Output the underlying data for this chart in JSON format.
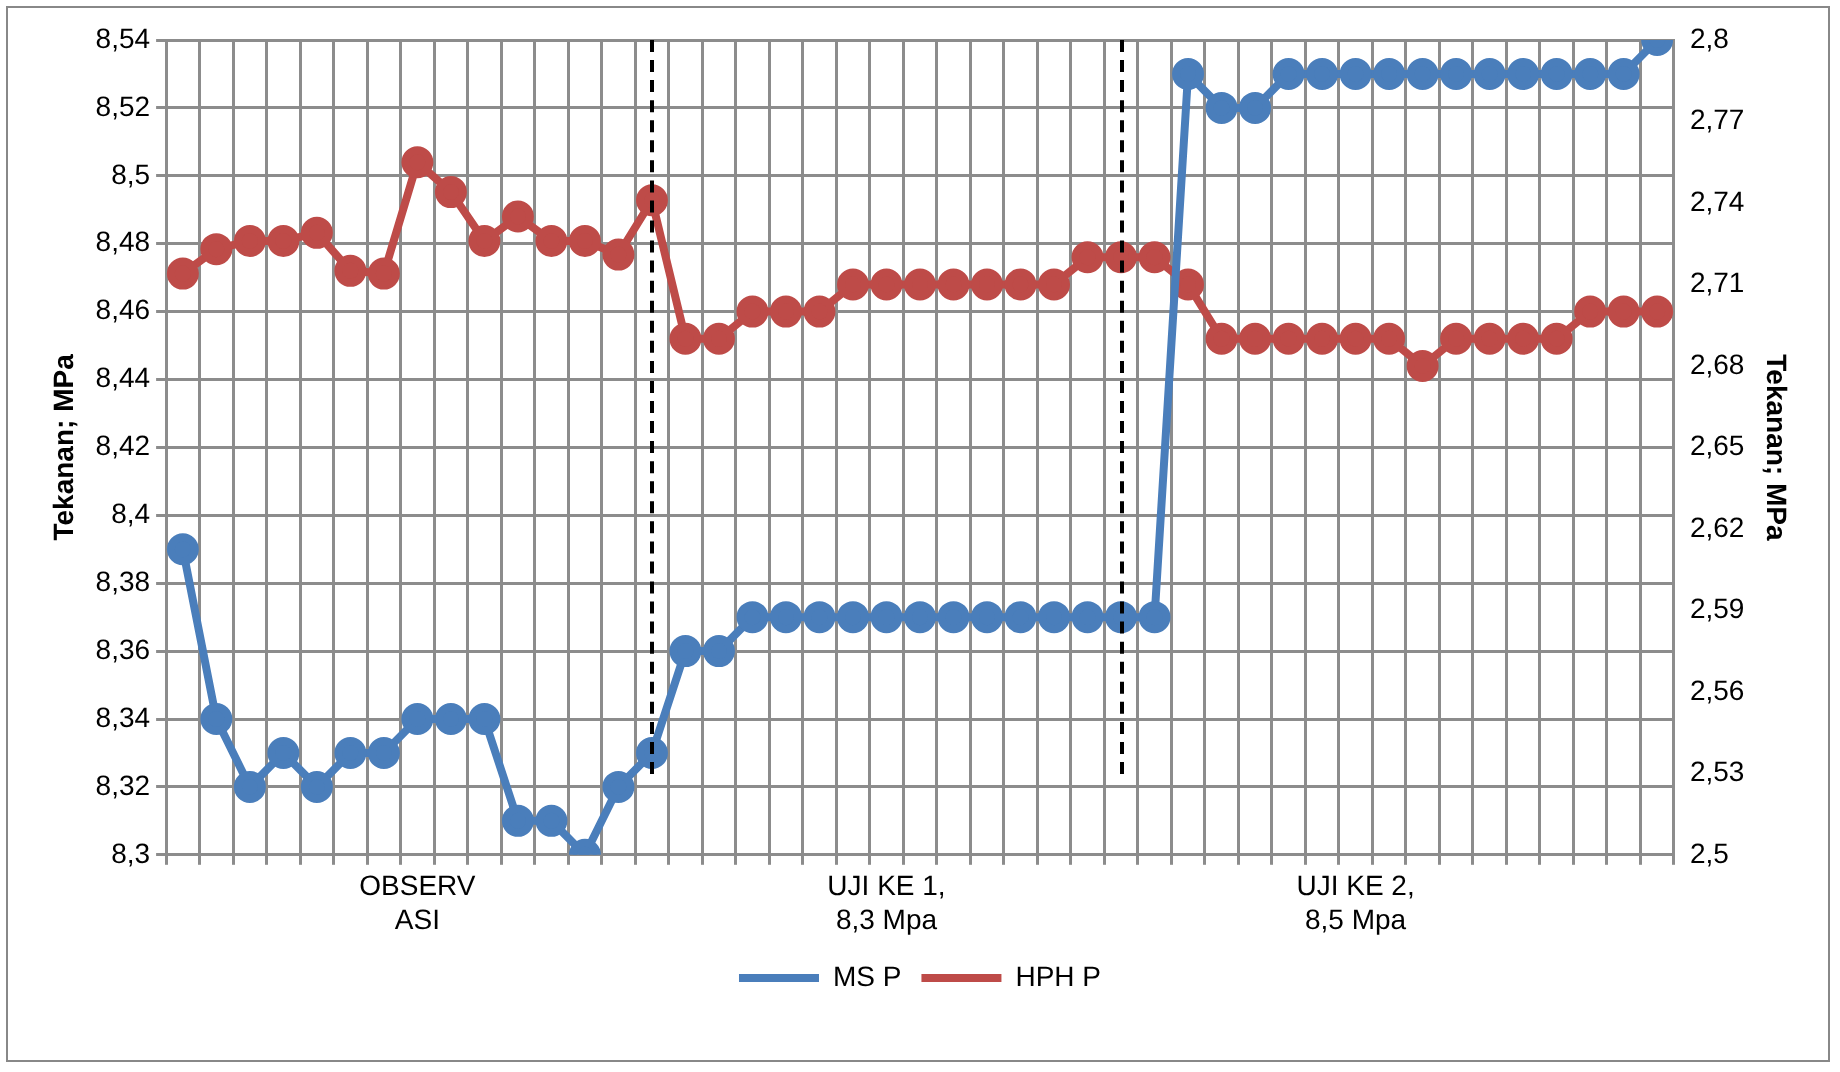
{
  "chart_data": {
    "type": "line",
    "ylabel": "Tekanan; MPa",
    "y2label": "Tekanan; MPa",
    "categories": [
      null,
      null,
      null,
      null,
      null,
      null,
      null,
      "OBSERV\nASI",
      null,
      null,
      null,
      null,
      null,
      null,
      null,
      null,
      null,
      null,
      null,
      null,
      null,
      "UJI KE 1,\n8,3 Mpa",
      null,
      null,
      null,
      null,
      null,
      null,
      null,
      null,
      null,
      null,
      null,
      null,
      null,
      "UJI KE 2,\n8,5 Mpa",
      null,
      null,
      null,
      null,
      null,
      null,
      null,
      null,
      null
    ],
    "series": [
      {
        "name": "MS P",
        "color": "#4a7ebb",
        "values": [
          8.39,
          8.34,
          8.32,
          8.33,
          8.32,
          8.33,
          8.33,
          8.34,
          8.34,
          8.34,
          8.31,
          8.31,
          8.3,
          8.32,
          8.33,
          8.36,
          8.36,
          8.37,
          8.37,
          8.37,
          8.37,
          8.37,
          8.37,
          8.37,
          8.37,
          8.37,
          8.37,
          8.37,
          8.37,
          8.37,
          8.53,
          8.52,
          8.52,
          8.53,
          8.53,
          8.53,
          8.53,
          8.53,
          8.53,
          8.53,
          8.53,
          8.53,
          8.53,
          8.53,
          8.54
        ]
      },
      {
        "name": "HPH P",
        "color": "#be4b48",
        "axis": "y2",
        "values": [
          2.714,
          2.723,
          2.726,
          2.726,
          2.729,
          2.715,
          2.714,
          2.755,
          2.744,
          2.726,
          2.735,
          2.726,
          2.726,
          2.721,
          2.741,
          2.69,
          2.69,
          2.7,
          2.7,
          2.7,
          2.71,
          2.71,
          2.71,
          2.71,
          2.71,
          2.71,
          2.71,
          2.72,
          2.72,
          2.72,
          2.71,
          2.69,
          2.69,
          2.69,
          2.69,
          2.69,
          2.69,
          2.68,
          2.69,
          2.69,
          2.69,
          2.69,
          2.7,
          2.7,
          2.7
        ]
      }
    ],
    "ylim": [
      8.3,
      8.54
    ],
    "yticks": [
      {
        "value": 8.3,
        "label": "8,3"
      },
      {
        "value": 8.32,
        "label": "8,32"
      },
      {
        "value": 8.34,
        "label": "8,34"
      },
      {
        "value": 8.36,
        "label": "8,36"
      },
      {
        "value": 8.38,
        "label": "8,38"
      },
      {
        "value": 8.4,
        "label": "8,4"
      },
      {
        "value": 8.42,
        "label": "8,42"
      },
      {
        "value": 8.44,
        "label": "8,44"
      },
      {
        "value": 8.46,
        "label": "8,46"
      },
      {
        "value": 8.48,
        "label": "8,48"
      },
      {
        "value": 8.5,
        "label": "8,5"
      },
      {
        "value": 8.52,
        "label": "8,52"
      },
      {
        "value": 8.54,
        "label": "8,54"
      }
    ],
    "y2lim": [
      2.5,
      2.8
    ],
    "y2ticks": [
      {
        "value": 2.5,
        "label": "2,5"
      },
      {
        "value": 2.53,
        "label": "2,53"
      },
      {
        "value": 2.56,
        "label": "2,56"
      },
      {
        "value": 2.59,
        "label": "2,59"
      },
      {
        "value": 2.62,
        "label": "2,62"
      },
      {
        "value": 2.65,
        "label": "2,65"
      },
      {
        "value": 2.68,
        "label": "2,68"
      },
      {
        "value": 2.71,
        "label": "2,71"
      },
      {
        "value": 2.74,
        "label": "2,74"
      },
      {
        "value": 2.77,
        "label": "2,77"
      },
      {
        "value": 2.8,
        "label": "2,8"
      }
    ],
    "grid": true,
    "legend": "bottom",
    "marker": "circle",
    "line_style": "solid"
  }
}
